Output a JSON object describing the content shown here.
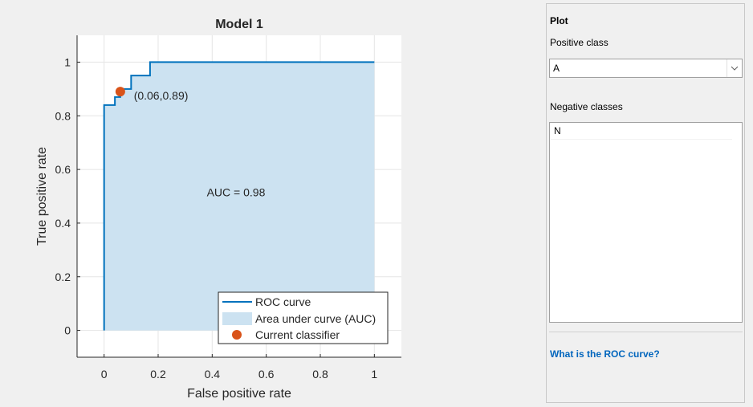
{
  "chart_data": {
    "type": "line",
    "title": "Model 1",
    "xlabel": "False positive rate",
    "ylabel": "True positive rate",
    "xlim": [
      -0.1,
      1.1
    ],
    "ylim": [
      -0.1,
      1.1
    ],
    "xticks": [
      0,
      0.2,
      0.4,
      0.6,
      0.8,
      1
    ],
    "yticks": [
      0,
      0.2,
      0.4,
      0.6,
      0.8,
      1
    ],
    "xtick_labels": [
      "0",
      "0.2",
      "0.4",
      "0.6",
      "0.8",
      "1"
    ],
    "ytick_labels": [
      "0",
      "0.2",
      "0.4",
      "0.6",
      "0.8",
      "1"
    ],
    "grid": true,
    "series": [
      {
        "name": "ROC curve",
        "color": "#0072bd",
        "x": [
          0,
          0,
          0.04,
          0.04,
          0.06,
          0.06,
          0.1,
          0.1,
          0.17,
          0.17,
          1
        ],
        "y": [
          0,
          0.84,
          0.84,
          0.87,
          0.87,
          0.9,
          0.9,
          0.95,
          0.95,
          1,
          1
        ]
      },
      {
        "name": "Area under curve (AUC)",
        "type": "area",
        "color": "#cce2f1"
      },
      {
        "name": "Current classifier",
        "type": "scatter",
        "color": "#d95319",
        "x": [
          0.06
        ],
        "y": [
          0.89
        ]
      }
    ],
    "annotations": [
      {
        "text": "(0.06,0.89)",
        "x": 0.11,
        "y": 0.86
      },
      {
        "text": "AUC = 0.98",
        "x": 0.38,
        "y": 0.5
      }
    ],
    "legend": {
      "position": "bottom-right",
      "entries": [
        "ROC curve",
        "Area under curve (AUC)",
        "Current classifier"
      ]
    }
  },
  "panel": {
    "title": "Plot",
    "positive_class_label": "Positive class",
    "positive_class_value": "A",
    "negative_classes_label": "Negative classes",
    "negative_classes": [
      "N"
    ],
    "help_link": "What is the ROC curve?"
  }
}
